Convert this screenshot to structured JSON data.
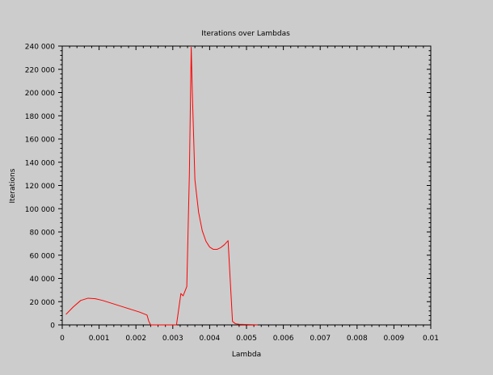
{
  "chart_data": {
    "type": "line",
    "title": "Iterations over Lambdas",
    "xlabel": "Lambda",
    "ylabel": "Iterations",
    "xlim": [
      0,
      0.01
    ],
    "ylim": [
      0,
      240000
    ],
    "x_ticks": [
      0,
      0.001,
      0.002,
      0.003,
      0.004,
      0.005,
      0.006,
      0.007,
      0.008,
      0.009,
      0.01
    ],
    "x_tick_labels": [
      "0",
      "0.001",
      "0.002",
      "0.003",
      "0.004",
      "0.005",
      "0.006",
      "0.007",
      "0.008",
      "0.009",
      "0.01"
    ],
    "y_ticks": [
      0,
      20000,
      40000,
      60000,
      80000,
      100000,
      120000,
      140000,
      160000,
      180000,
      200000,
      220000,
      240000
    ],
    "y_tick_labels": [
      "0",
      "20 000",
      "40 000",
      "60 000",
      "80 000",
      "100 000",
      "120 000",
      "140 000",
      "160 000",
      "180 000",
      "200 000",
      "220 000",
      "240 000"
    ],
    "grid": false,
    "legend": "none",
    "colors": {
      "background": "#cccccc",
      "series": "#ff0000",
      "axis": "#000000"
    },
    "series": [
      {
        "x": [
          0.0001,
          0.0003,
          0.0005,
          0.0007,
          0.0009,
          0.0011,
          0.0013,
          0.0015,
          0.0017,
          0.0019,
          0.0021,
          0.0023,
          0.00235,
          0.0024,
          0.0028,
          0.0031,
          0.00322,
          0.00328,
          0.00338,
          0.00345,
          0.0035,
          0.00353,
          0.0036,
          0.0037,
          0.0038,
          0.0039,
          0.004,
          0.0041,
          0.0042,
          0.0043,
          0.0044,
          0.0045,
          0.00462,
          0.0047,
          0.0048,
          0.0053
        ],
        "y": [
          9000,
          15500,
          21000,
          23000,
          22500,
          21000,
          19000,
          17000,
          15000,
          13000,
          11000,
          8500,
          3000,
          0,
          0,
          0,
          27000,
          25000,
          33000,
          130000,
          239000,
          200000,
          125000,
          97000,
          81000,
          72000,
          67000,
          65000,
          65000,
          66500,
          69000,
          72500,
          3000,
          1000,
          500,
          0
        ]
      }
    ]
  }
}
